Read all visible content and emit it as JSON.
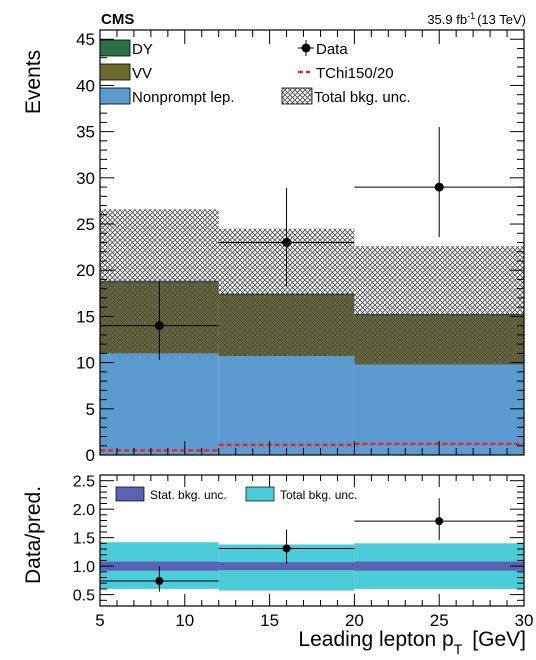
{
  "header": {
    "experiment": "CMS",
    "lumi_value": "35.9 fb",
    "lumi_sup": "-1",
    "lumi_energy": "(13 TeV)"
  },
  "colors": {
    "dy": "#2e6f46",
    "vv": "#6b6b2e",
    "nonprompt": "#5b9bd0",
    "signal": "#e8262a",
    "stat_band": "#5a63b3",
    "total_band": "#4ccbd9",
    "hatch": "#555555"
  },
  "chart_data": [
    {
      "type": "bar",
      "stacked": true,
      "xlabel": "Leading lepton p",
      "xlabel_sub": "T",
      "xlabel_unit": "[GeV]",
      "ylabel": "Events",
      "xlim": [
        5,
        30
      ],
      "ylim": [
        0,
        46
      ],
      "yticks": [
        "0",
        "5",
        "10",
        "15",
        "20",
        "25",
        "30",
        "35",
        "40",
        "45"
      ],
      "bins": [
        [
          5,
          12
        ],
        [
          12,
          20
        ],
        [
          20,
          30
        ]
      ],
      "series": [
        {
          "name": "Nonprompt lep.",
          "values": [
            11.0,
            10.7,
            9.8
          ]
        },
        {
          "name": "VV",
          "values": [
            7.5,
            6.5,
            5.2
          ]
        },
        {
          "name": "DY",
          "values": [
            0.3,
            0.2,
            0.2
          ]
        }
      ],
      "total_bkg_unc": {
        "name": "Total bkg. unc.",
        "low": [
          11.0,
          10.7,
          9.8
        ],
        "high": [
          26.6,
          24.5,
          22.6
        ]
      },
      "signal": {
        "name": "TChi150/20",
        "values": [
          0.5,
          1.1,
          1.2
        ]
      },
      "data": {
        "name": "Data",
        "x": [
          8.5,
          16,
          25
        ],
        "y": [
          14,
          23,
          29
        ],
        "yerr_low": [
          3.7,
          4.8,
          5.4
        ],
        "yerr_high": [
          4.8,
          5.9,
          6.5
        ]
      },
      "legend": [
        {
          "key": "dy",
          "label": "DY",
          "style": "box"
        },
        {
          "key": "vv",
          "label": "VV",
          "style": "box"
        },
        {
          "key": "nonprompt",
          "label": "Nonprompt lep.",
          "style": "box"
        },
        {
          "key": "data",
          "label": "Data",
          "style": "marker"
        },
        {
          "key": "signal",
          "label": "TChi150/20",
          "style": "dashed"
        },
        {
          "key": "unc",
          "label": "Total bkg. unc.",
          "style": "hatch"
        }
      ]
    },
    {
      "type": "scatter",
      "xlabel": "Leading lepton p",
      "xlabel_sub": "T",
      "xlabel_unit": "[GeV]",
      "ylabel": "Data/pred.",
      "xlim": [
        5,
        30
      ],
      "ylim": [
        0.3,
        2.6
      ],
      "yticks": [
        "0.5",
        "1.0",
        "1.5",
        "2.0",
        "2.5"
      ],
      "xticks": [
        "5",
        "10",
        "15",
        "20",
        "25",
        "30"
      ],
      "bins": [
        [
          5,
          12
        ],
        [
          12,
          20
        ],
        [
          20,
          30
        ]
      ],
      "stat_band": {
        "name": "Stat. bkg. unc.",
        "low": [
          0.92,
          0.93,
          0.92
        ],
        "high": [
          1.08,
          1.07,
          1.08
        ]
      },
      "total_band": {
        "name": "Total bkg. unc.",
        "low": [
          0.6,
          0.57,
          0.6
        ],
        "high": [
          1.42,
          1.38,
          1.4
        ]
      },
      "points": {
        "x": [
          8.5,
          16,
          25
        ],
        "y": [
          0.74,
          1.31,
          1.79
        ],
        "yerr_low": [
          0.19,
          0.27,
          0.33
        ],
        "yerr_high": [
          0.26,
          0.33,
          0.4
        ]
      },
      "legend": [
        {
          "key": "stat",
          "label": "Stat. bkg. unc."
        },
        {
          "key": "total",
          "label": "Total bkg. unc."
        }
      ]
    }
  ]
}
